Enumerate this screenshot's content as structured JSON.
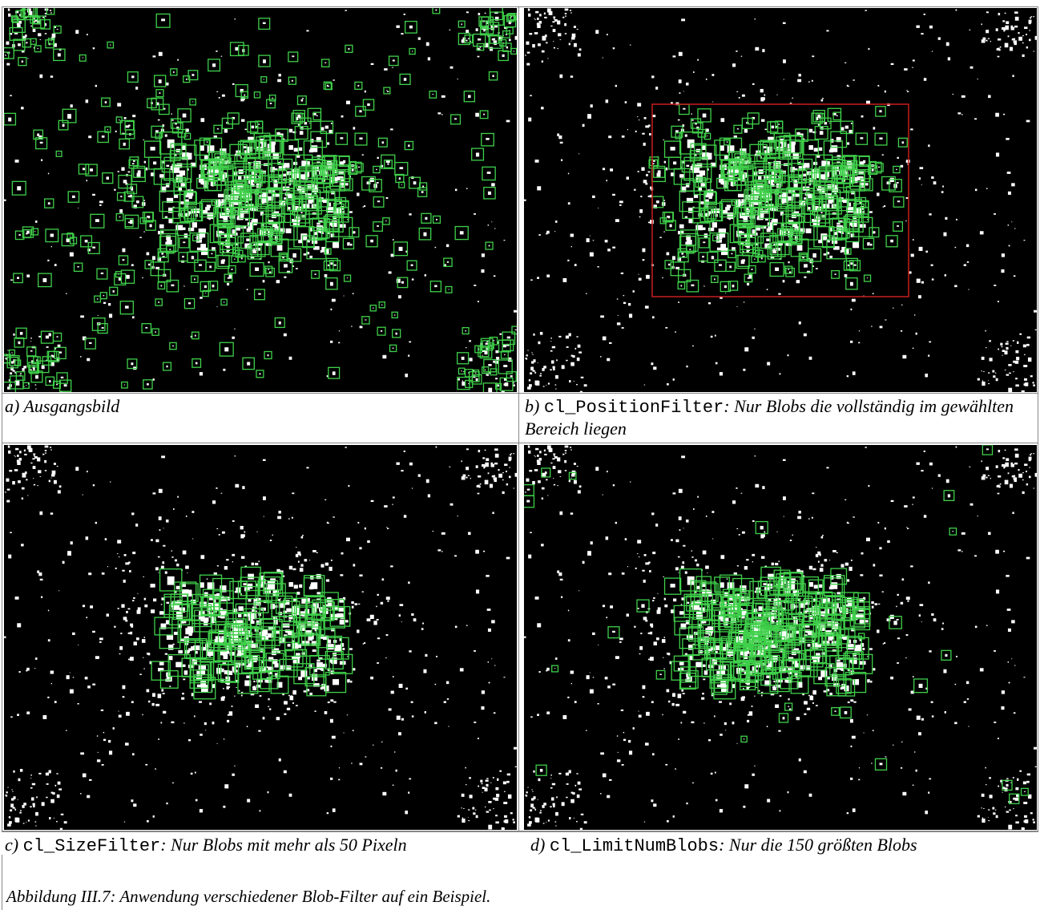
{
  "panels": [
    {
      "id": "a",
      "label_prefix": "a) ",
      "label_text": "Ausgangsbild",
      "blob_color": "#3fd04a"
    },
    {
      "id": "b",
      "label_prefix": "b) ",
      "label_code": "cl_PositionFilter",
      "label_text": ": Nur Blobs die vollständig im gewählten Bereich liegen",
      "roi_color": "#c81e1e"
    },
    {
      "id": "c",
      "label_prefix": "c) ",
      "label_code": "cl_SizeFilter",
      "label_text": ": Nur Blobs mit mehr als 50 Pixeln"
    },
    {
      "id": "d",
      "label_prefix": "d) ",
      "label_code": "cl_LimitNumBlobs",
      "label_text": ": Nur die 150 größten Blobs"
    }
  ],
  "figure_caption": "Abbildung III.7: Anwendung verschiedener Blob-Filter auf ein Beispiel."
}
